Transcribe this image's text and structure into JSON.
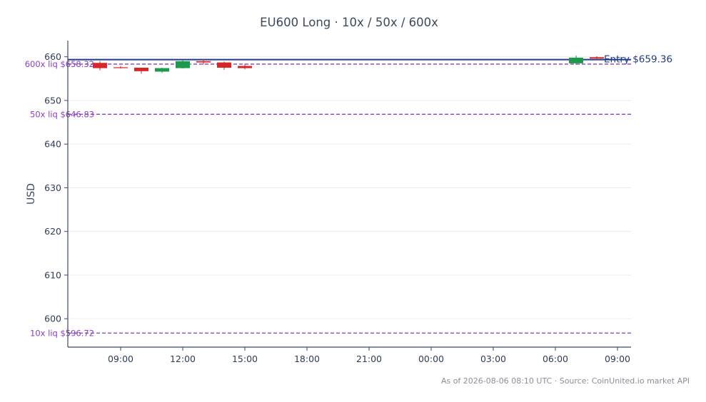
{
  "chart_data": {
    "type": "candlestick",
    "title": "EU600 Long · 10x / 50x / 600x",
    "ylabel": "USD",
    "ylim": [
      593.5,
      663.7
    ],
    "yticks": [
      600,
      610,
      620,
      630,
      640,
      650,
      660
    ],
    "xticks": [
      "09:00",
      "12:00",
      "15:00",
      "18:00",
      "21:00",
      "00:00",
      "03:00",
      "06:00",
      "09:00"
    ],
    "grid": "horizontal",
    "candles": [
      {
        "t": "08:00",
        "open": 658.6,
        "high": 659.0,
        "low": 656.9,
        "close": 657.4
      },
      {
        "t": "09:00",
        "open": 657.6,
        "high": 657.9,
        "low": 657.3,
        "close": 657.5
      },
      {
        "t": "10:00",
        "open": 657.5,
        "high": 657.5,
        "low": 656.1,
        "close": 656.7
      },
      {
        "t": "11:00",
        "open": 656.6,
        "high": 657.5,
        "low": 656.3,
        "close": 657.4
      },
      {
        "t": "12:00",
        "open": 657.4,
        "high": 659.3,
        "low": 657.3,
        "close": 659.0
      },
      {
        "t": "13:00",
        "open": 659.0,
        "high": 659.5,
        "low": 658.2,
        "close": 658.7
      },
      {
        "t": "14:00",
        "open": 658.7,
        "high": 658.9,
        "low": 657.0,
        "close": 657.5
      },
      {
        "t": "15:00",
        "open": 657.9,
        "high": 658.4,
        "low": 657.1,
        "close": 657.4
      },
      {
        "t": "07:00",
        "open": 658.5,
        "high": 660.3,
        "low": 658.1,
        "close": 659.8
      },
      {
        "t": "08:00",
        "open": 659.9,
        "high": 660.1,
        "low": 659.3,
        "close": 659.6
      }
    ],
    "entry": {
      "label": "Entry $659.36",
      "value": 659.36
    },
    "liquidation_levels": [
      {
        "label": "600x liq $658.32",
        "value": 658.32
      },
      {
        "label": "50x liq $646.83",
        "value": 646.83
      },
      {
        "label": "10x liq $596.72",
        "value": 596.72
      }
    ]
  },
  "footer": "As of 2026-08-06 08:10 UTC · Source: CoinUnited.io market API",
  "colors": {
    "up": "#1a9a4a",
    "down": "#d62628",
    "entry": "#203a8a",
    "liquidation": "#8a3fc8",
    "axis": "#3b4a5e",
    "grid": "#e9ecef"
  }
}
